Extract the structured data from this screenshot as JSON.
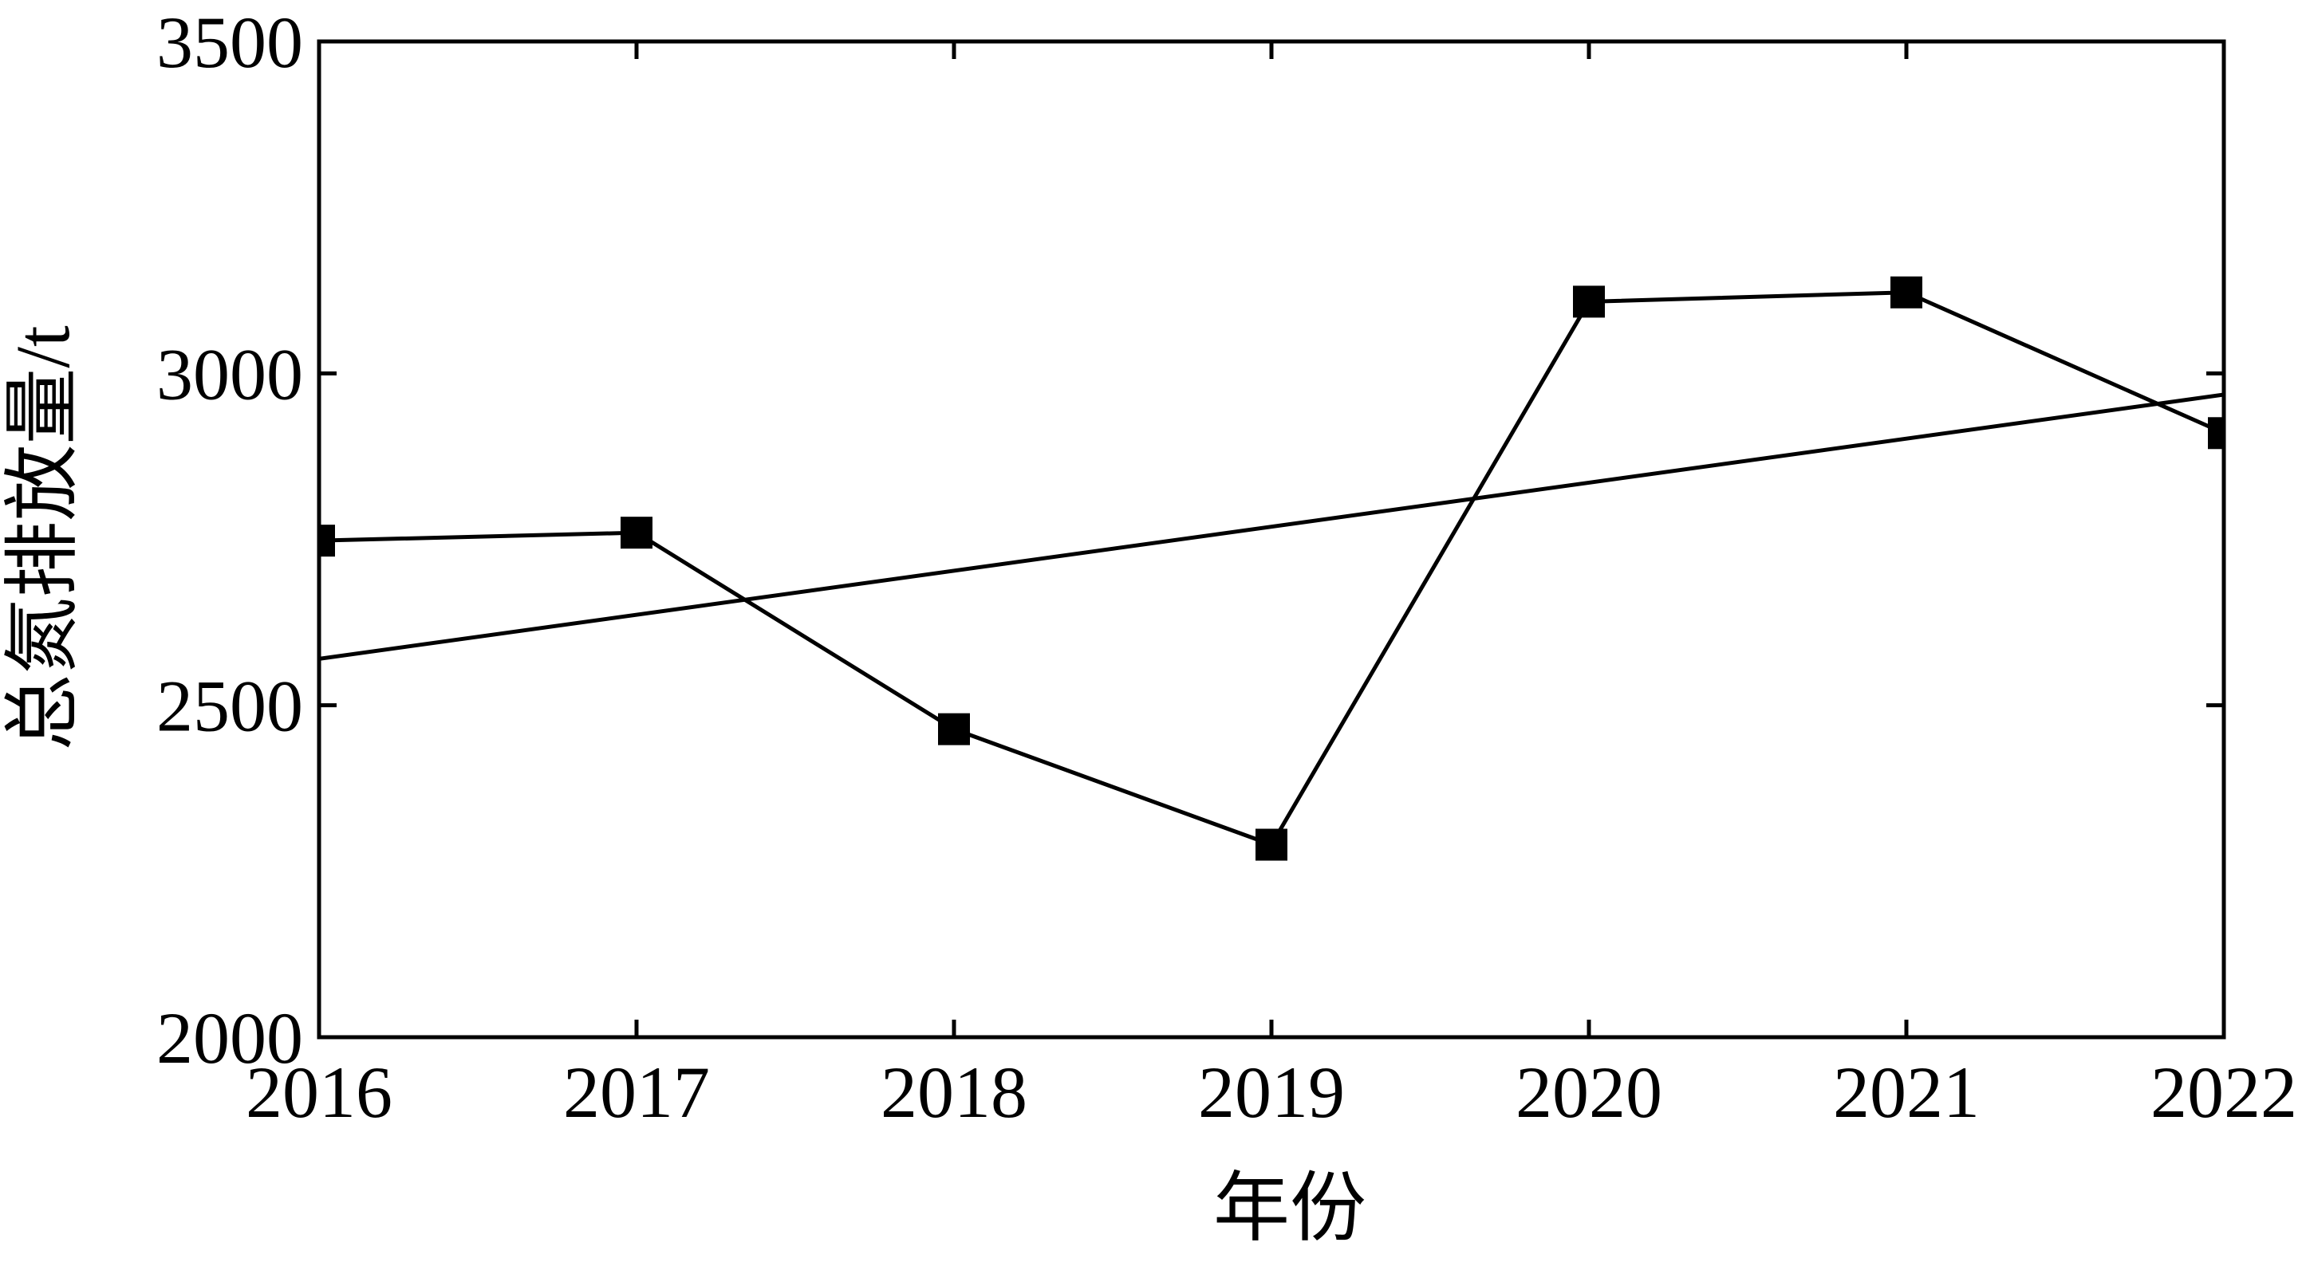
{
  "chart_data": {
    "type": "line",
    "title": "",
    "xlabel": "年份",
    "ylabel": "总氮排放量/t",
    "x": [
      2016,
      2017,
      2018,
      2019,
      2020,
      2021,
      2022
    ],
    "xlim": [
      2016,
      2022
    ],
    "ylim": [
      2000,
      3500
    ],
    "x_ticks": [
      "2016",
      "2017",
      "2018",
      "2019",
      "2020",
      "2021",
      "2022"
    ],
    "y_ticks": [
      "2000",
      "2500",
      "3000",
      "3500"
    ],
    "y_tick_values": [
      2000,
      2500,
      3000,
      3500
    ],
    "grid": false,
    "legend": "none",
    "series": [
      {
        "marker": "square",
        "color": "#000000",
        "values": [
          2748,
          2760,
          2464,
          2290,
          3108,
          3122,
          2910
        ]
      },
      {
        "kind": "linear-trend",
        "color": "#000000",
        "x": [
          2016,
          2022
        ],
        "values": [
          2570,
          2968
        ]
      }
    ]
  }
}
